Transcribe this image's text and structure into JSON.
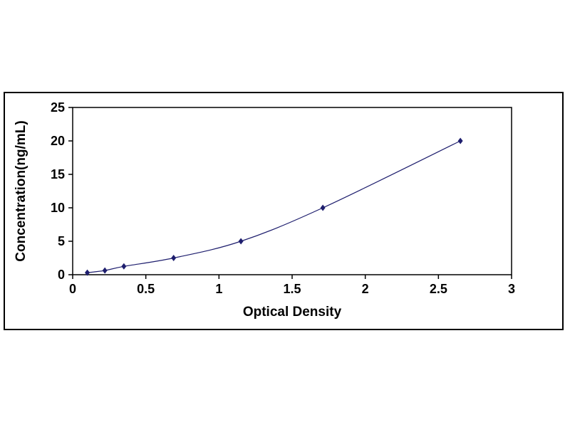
{
  "chart_data": {
    "type": "line",
    "xlabel": "Optical Density",
    "ylabel": "Concentration(ng/mL)",
    "x": [
      0.1,
      0.22,
      0.35,
      0.69,
      1.15,
      1.71,
      2.65
    ],
    "y": [
      0.31,
      0.63,
      1.25,
      2.5,
      5,
      10,
      20
    ],
    "xlim": [
      0,
      3
    ],
    "ylim": [
      0,
      25
    ],
    "x_ticks": [
      0,
      0.5,
      1,
      1.5,
      2,
      2.5,
      3
    ],
    "x_tick_labels": [
      "0",
      "0.5",
      "1",
      "1.5",
      "2",
      "2.5",
      "3"
    ],
    "y_ticks": [
      0,
      5,
      10,
      15,
      20,
      25
    ],
    "y_tick_labels": [
      "0",
      "5",
      "10",
      "15",
      "20",
      "25"
    ],
    "marker": "diamond",
    "series_color": "#1e1e6e",
    "axis_color": "#000000",
    "background_color": "#ffffff",
    "grid": false,
    "legend": "none"
  }
}
